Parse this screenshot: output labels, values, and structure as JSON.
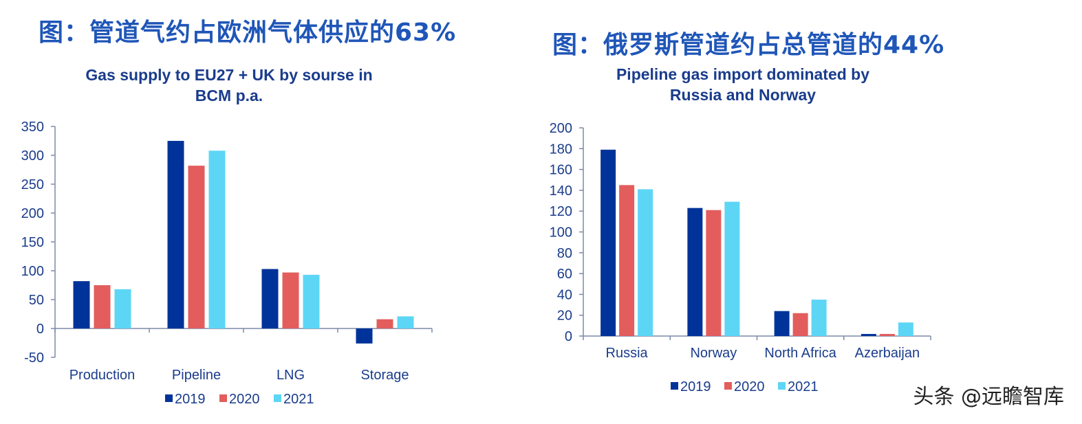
{
  "headings": {
    "left": "图：管道气约占欧洲气体供应的63%",
    "right": "图：俄罗斯管道约占总管道的44%"
  },
  "watermark": "头条 @远瞻智库",
  "colors": {
    "2019": "#003399",
    "2020": "#e35d5d",
    "2021": "#5dd6f5",
    "text": "#1a3c8c",
    "heading": "#1f56b8"
  },
  "chart_data": [
    {
      "type": "bar",
      "title_lines": [
        "Gas supply to EU27 + UK by sourse in",
        "BCM p.a."
      ],
      "categories": [
        "Production",
        "Pipeline",
        "LNG",
        "Storage"
      ],
      "series": [
        {
          "name": "2019",
          "values": [
            82,
            325,
            103,
            -26
          ]
        },
        {
          "name": "2020",
          "values": [
            75,
            282,
            97,
            16
          ]
        },
        {
          "name": "2021",
          "values": [
            68,
            308,
            93,
            21
          ]
        }
      ],
      "yticks": [
        "350",
        "300",
        "250",
        "200",
        "150",
        "100",
        "50",
        "0",
        "-50"
      ],
      "ylim": [
        -50,
        350
      ],
      "legend": [
        "2019",
        "2020",
        "2021"
      ]
    },
    {
      "type": "bar",
      "title_lines": [
        "Pipeline gas import dominated by",
        "Russia and Norway"
      ],
      "categories": [
        "Russia",
        "Norway",
        "North Africa",
        "Azerbaijan"
      ],
      "series": [
        {
          "name": "2019",
          "values": [
            179,
            123,
            24,
            2
          ]
        },
        {
          "name": "2020",
          "values": [
            145,
            121,
            22,
            2
          ]
        },
        {
          "name": "2021",
          "values": [
            141,
            129,
            35,
            13
          ]
        }
      ],
      "yticks": [
        "200",
        "180",
        "160",
        "140",
        "120",
        "100",
        "80",
        "60",
        "40",
        "20",
        "0"
      ],
      "ylim": [
        0,
        200
      ],
      "legend": [
        "2019",
        "2020",
        "2021"
      ]
    }
  ]
}
